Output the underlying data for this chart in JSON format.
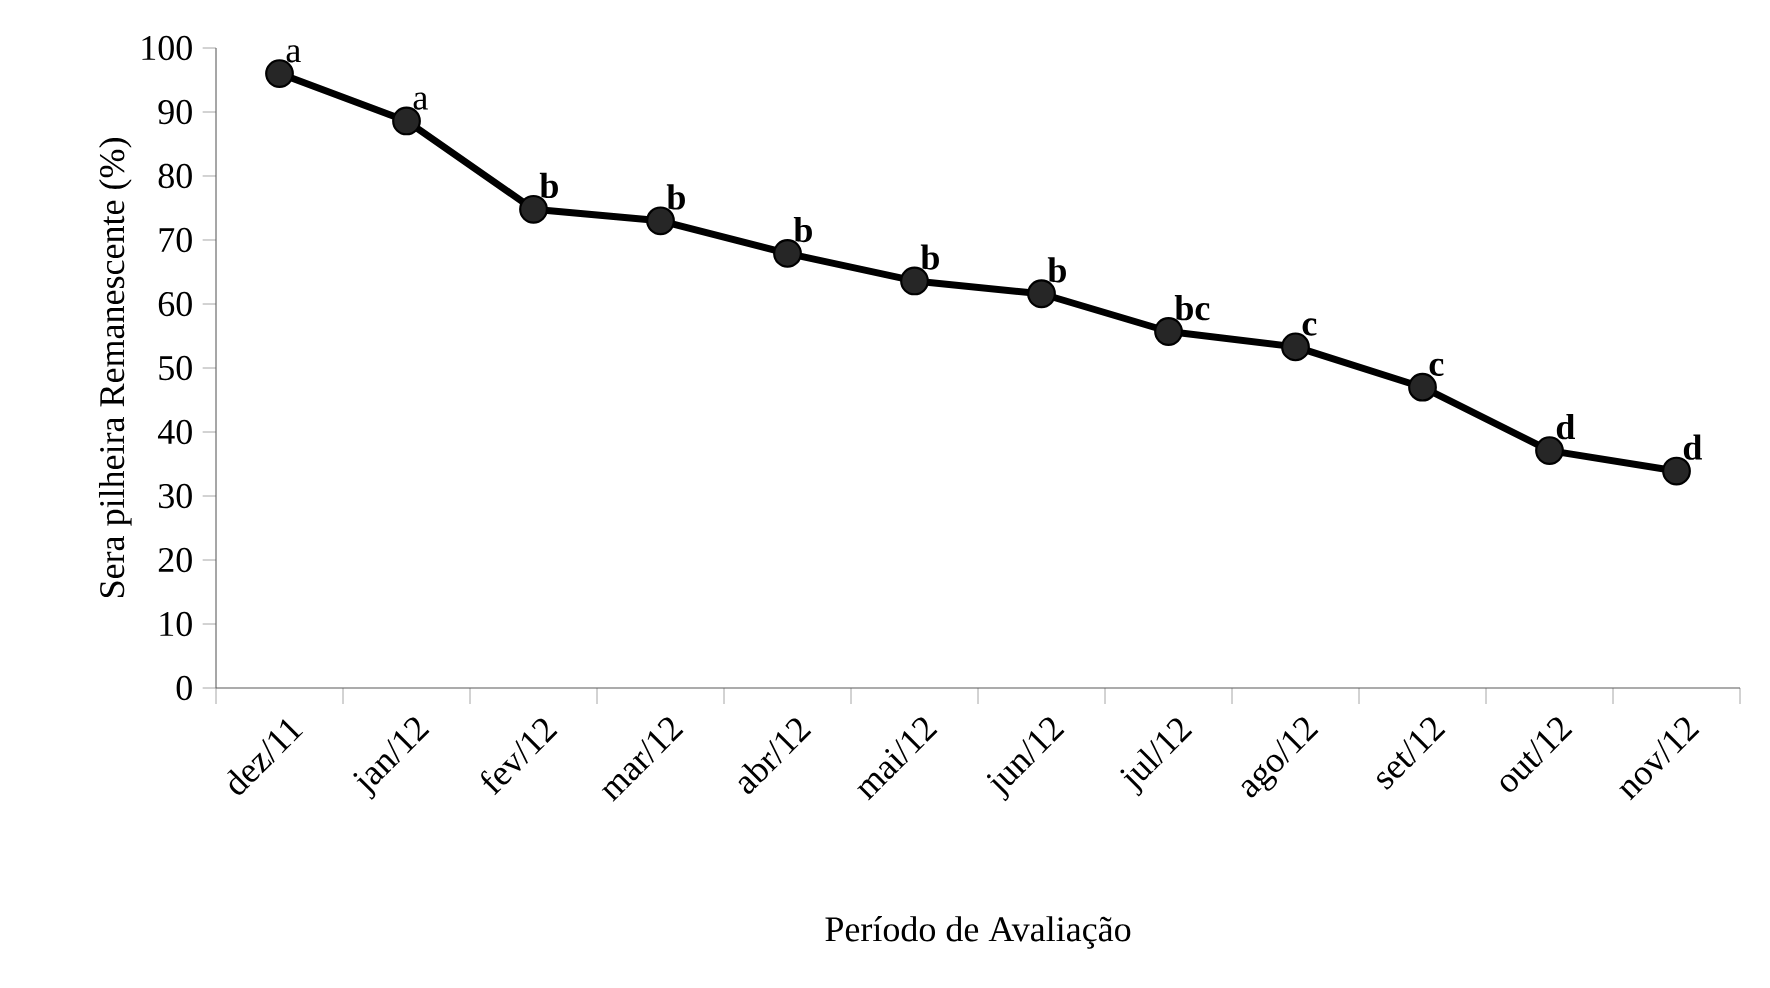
{
  "chart_data": {
    "type": "line",
    "xlabel": "Período de Avaliação",
    "ylabel": "Sera pilheira Remanescente (%)",
    "categories": [
      "dez/11",
      "jan/12",
      "fev/12",
      "mar/12",
      "abr/12",
      "mai/12",
      "jun/12",
      "jul/12",
      "ago/12",
      "set/12",
      "out/12",
      "nov/12"
    ],
    "series": [
      {
        "color": "#000000",
        "values": [
          96.0,
          88.6,
          74.8,
          73.0,
          67.9,
          63.6,
          61.6,
          55.7,
          53.3,
          47.0,
          37.1,
          33.9
        ]
      }
    ],
    "ylim": [
      0,
      100
    ],
    "yticks": [
      0,
      10,
      20,
      30,
      40,
      50,
      60,
      70,
      80,
      90,
      100
    ],
    "marker": "circle",
    "line_style": "solid",
    "annotations": [
      {
        "text": "a",
        "x": "dez/11",
        "y": 96.0
      },
      {
        "text": "a",
        "x": "jan/12",
        "y": 88.6
      },
      {
        "text": "**b**",
        "x": "fev/12",
        "y": 74.8
      },
      {
        "text": "**b**",
        "x": "mar/12",
        "y": 73.0
      },
      {
        "text": "**b**",
        "x": "abr/12",
        "y": 67.9
      },
      {
        "text": "**b**",
        "x": "mai/12",
        "y": 63.6
      },
      {
        "text": "**b**",
        "x": "jun/12",
        "y": 61.6
      },
      {
        "text": "**bc**",
        "x": "jul/12",
        "y": 55.7
      },
      {
        "text": "**c**",
        "x": "ago/12",
        "y": 53.3
      },
      {
        "text": "**c**",
        "x": "set/12",
        "y": 47.0
      },
      {
        "text": "**d**",
        "x": "out/12",
        "y": 37.1
      },
      {
        "text": "**d**",
        "x": "nov/12",
        "y": 33.9
      }
    ]
  }
}
